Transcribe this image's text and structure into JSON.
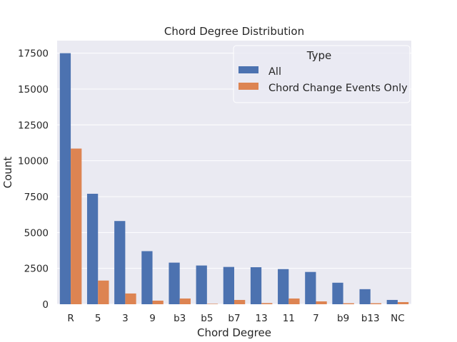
{
  "chart_data": {
    "type": "bar",
    "title": "Chord Degree Distribution",
    "xlabel": "Chord Degree",
    "ylabel": "Count",
    "categories": [
      "R",
      "5",
      "3",
      "9",
      "b3",
      "b5",
      "b7",
      "13",
      "11",
      "7",
      "b9",
      "b13",
      "NC"
    ],
    "series": [
      {
        "name": "All",
        "color": "#4c72b0",
        "values": [
          17500,
          7700,
          5800,
          3700,
          2900,
          2700,
          2600,
          2580,
          2450,
          2250,
          1500,
          1050,
          300
        ]
      },
      {
        "name": "Chord Change Events Only",
        "color": "#dd8452",
        "values": [
          10850,
          1650,
          750,
          250,
          400,
          30,
          300,
          80,
          400,
          200,
          70,
          70,
          150
        ]
      }
    ],
    "ylim": [
      0,
      18375
    ],
    "yticks": [
      0,
      2500,
      5000,
      7500,
      10000,
      12500,
      15000,
      17500
    ],
    "ytick_labels": [
      "0",
      "2500",
      "5000",
      "7500",
      "10000",
      "12500",
      "15000",
      "17500"
    ],
    "grid": true,
    "legend": {
      "title": "Type",
      "position": "top-right"
    },
    "style": {
      "background": "#eaeaf2",
      "grid_color": "#ffffff"
    }
  }
}
